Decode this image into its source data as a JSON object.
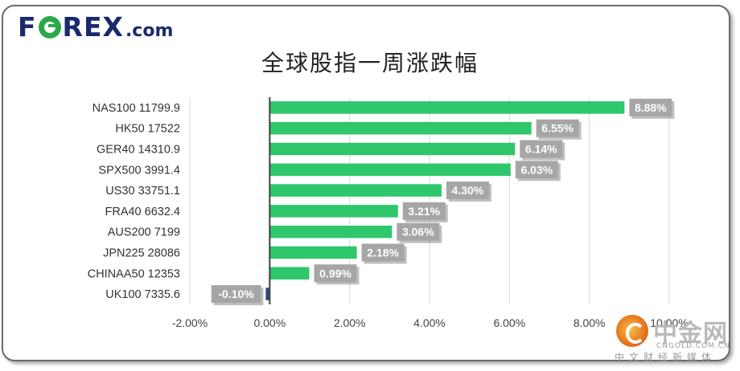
{
  "brand": {
    "logo_left": "F",
    "logo_right": "REX",
    "logo_suffix": ".com"
  },
  "watermark": {
    "name": "中金网",
    "url": "CNGOLD.COM.CN",
    "tagline": "中文财经新媒体"
  },
  "colors": {
    "bar_positive": "#2ec76b",
    "bar_negative": "#2e4a7d",
    "label_box": "#a6a6a6",
    "label_text": "#ffffff",
    "axis": "#404040",
    "grid": "#d9d9d9"
  },
  "chart_data": {
    "type": "bar",
    "orientation": "horizontal",
    "title": "全球股指一周涨跌幅",
    "categories": [
      "NAS100  11799.9",
      "HK50  17522",
      "GER40  14310.9",
      "SPX500  3991.4",
      "US30  33751.1",
      "FRA40  6632.4",
      "AUS200  7199",
      "JPN225  28086",
      "CHINAA50  12353",
      "UK100  7335.6"
    ],
    "values": [
      8.88,
      6.55,
      6.14,
      6.03,
      4.3,
      3.21,
      3.06,
      2.18,
      0.99,
      -0.1
    ],
    "data_labels": [
      "8.88%",
      "6.55%",
      "6.14%",
      "6.03%",
      "4.30%",
      "3.21%",
      "3.06%",
      "2.18%",
      "0.99%",
      "-0.10%"
    ],
    "xlim": [
      -2,
      10
    ],
    "xticks": [
      -2,
      0,
      2,
      4,
      6,
      8,
      10
    ],
    "xtick_labels": [
      "-2.00%",
      "0.00%",
      "2.00%",
      "4.00%",
      "6.00%",
      "8.00%",
      "10.00%"
    ],
    "grid": true,
    "legend": "none"
  }
}
